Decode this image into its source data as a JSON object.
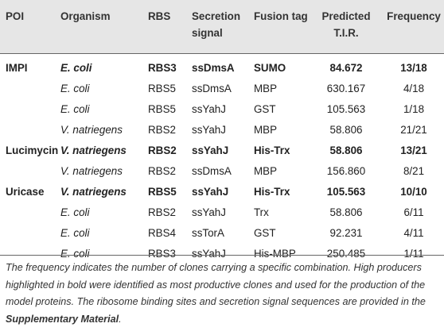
{
  "table": {
    "headers": {
      "poi": "POI",
      "organism": "Organism",
      "rbs": "RBS",
      "secretion": "Secretion signal",
      "fusion": "Fusion tag",
      "tir": "Predicted T.I.R.",
      "frequency": "Frequency"
    },
    "rows": [
      {
        "poi": "IMPI",
        "organism": "E. coli",
        "rbs": "RBS3",
        "secretion": "ssDmsA",
        "fusion": "SUMO",
        "tir": "84.672",
        "frequency": "13/18",
        "bold": true
      },
      {
        "poi": "",
        "organism": "E. coli",
        "rbs": "RBS5",
        "secretion": "ssDmsA",
        "fusion": "MBP",
        "tir": "630.167",
        "frequency": "4/18",
        "bold": false
      },
      {
        "poi": "",
        "organism": "E. coli",
        "rbs": "RBS5",
        "secretion": "ssYahJ",
        "fusion": "GST",
        "tir": "105.563",
        "frequency": "1/18",
        "bold": false
      },
      {
        "poi": "",
        "organism": "V. natriegens",
        "rbs": "RBS2",
        "secretion": "ssYahJ",
        "fusion": "MBP",
        "tir": "58.806",
        "frequency": "21/21",
        "bold": false
      },
      {
        "poi": "Lucimycin",
        "organism": "V. natriegens",
        "rbs": "RBS2",
        "secretion": "ssYahJ",
        "fusion": "His-Trx",
        "tir": "58.806",
        "frequency": "13/21",
        "bold": true
      },
      {
        "poi": "",
        "organism": "V. natriegens",
        "rbs": "RBS2",
        "secretion": "ssDmsA",
        "fusion": "MBP",
        "tir": "156.860",
        "frequency": "8/21",
        "bold": false
      },
      {
        "poi": "Uricase",
        "organism": "V. natriegens",
        "rbs": "RBS5",
        "secretion": "ssYahJ",
        "fusion": "His-Trx",
        "tir": "105.563",
        "frequency": "10/10",
        "bold": true
      },
      {
        "poi": "",
        "organism": "E. coli",
        "rbs": "RBS2",
        "secretion": "ssYahJ",
        "fusion": "Trx",
        "tir": "58.806",
        "frequency": "6/11",
        "bold": false
      },
      {
        "poi": "",
        "organism": "E. coli",
        "rbs": "RBS4",
        "secretion": "ssTorA",
        "fusion": "GST",
        "tir": "92.231",
        "frequency": "4/11",
        "bold": false
      },
      {
        "poi": "",
        "organism": "E. coli",
        "rbs": "RBS3",
        "secretion": "ssYahJ",
        "fusion": "His-MBP",
        "tir": "250.485",
        "frequency": "1/11",
        "bold": false
      }
    ]
  },
  "footnote": {
    "text_before": "The frequency indicates the number of clones carrying a specific combination. High producers highlighted in bold were identified as most productive clones and used for the production of the model proteins. The ribosome binding sites and secretion signal sequences are provided in the ",
    "link_text": "Supplementary Material",
    "text_after": "."
  }
}
